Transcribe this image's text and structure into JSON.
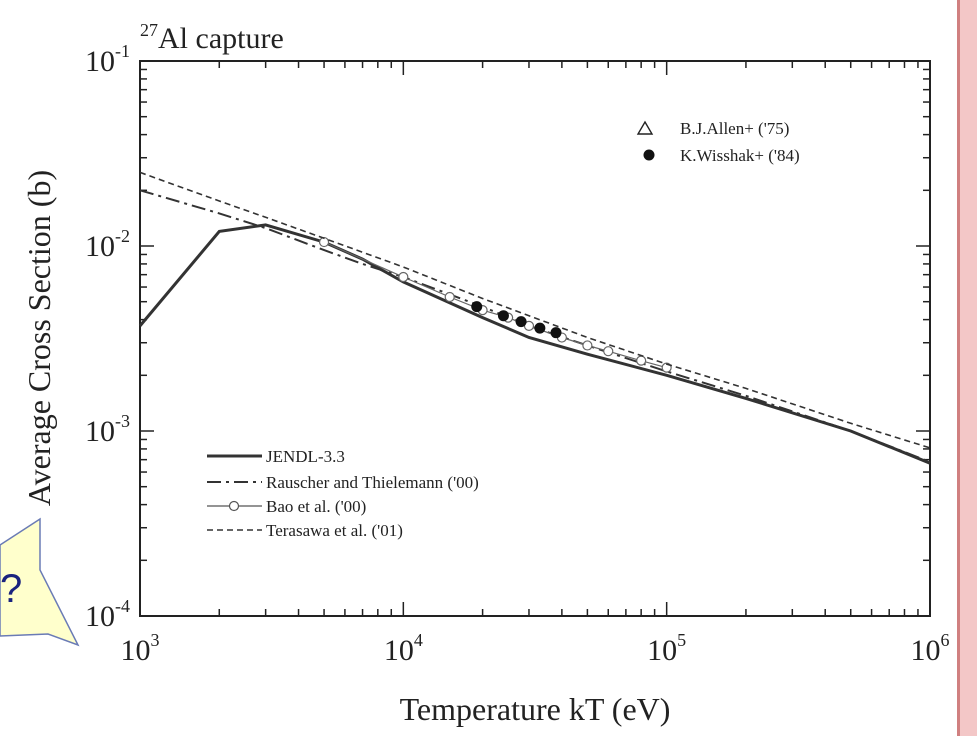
{
  "colors": {
    "background": "#ffffff",
    "side_stripe": "#f3c7c7",
    "callout_fill": "#ffffcc",
    "callout_border": "#6a7bb5",
    "callout_text": "#1a237e",
    "ink": "#222222"
  },
  "callout": {
    "text": "?",
    "shape": "arrow-callout"
  },
  "chart_data": {
    "type": "line",
    "title_base": "Al capture",
    "title_superscript": "27",
    "xlabel": "Temperature kT (eV)",
    "ylabel": "Average Cross Section (b)",
    "xscale": "log",
    "yscale": "log",
    "xlim": [
      1000,
      1000000
    ],
    "ylim": [
      0.0001,
      0.1
    ],
    "x_ticks": [
      {
        "base": "10",
        "exp": "3",
        "value": 1000
      },
      {
        "base": "10",
        "exp": "4",
        "value": 10000
      },
      {
        "base": "10",
        "exp": "5",
        "value": 100000
      },
      {
        "base": "10",
        "exp": "6",
        "value": 1000000
      }
    ],
    "y_ticks": [
      {
        "base": "10",
        "exp": "-1",
        "value": 0.1
      },
      {
        "base": "10",
        "exp": "-2",
        "value": 0.01
      },
      {
        "base": "10",
        "exp": "-3",
        "value": 0.001
      },
      {
        "base": "10",
        "exp": "-4",
        "value": 0.0001
      }
    ],
    "grid": false,
    "legend_upper_position": "top-right",
    "legend_lower_position": "bottom-left",
    "series": [
      {
        "name": "JENDL-3.3",
        "style": "solid",
        "x": [
          1000,
          2000,
          3000,
          5000,
          7000,
          10000,
          20000,
          30000,
          50000,
          100000,
          200000,
          500000,
          1000000
        ],
        "y": [
          0.0037,
          0.012,
          0.013,
          0.0105,
          0.0085,
          0.0064,
          0.0041,
          0.0032,
          0.0026,
          0.002,
          0.0015,
          0.001,
          0.00067
        ]
      },
      {
        "name": "Rauscher and Thielemann ('00)",
        "style": "dashdot",
        "x": [
          1000,
          2000,
          3000,
          5000,
          7000,
          10000,
          20000,
          30000,
          50000,
          100000,
          200000,
          500000,
          1000000
        ],
        "y": [
          0.02,
          0.015,
          0.0125,
          0.0095,
          0.008,
          0.0068,
          0.0047,
          0.0037,
          0.0029,
          0.0021,
          0.00155,
          0.001,
          0.00068
        ]
      },
      {
        "name": "Bao et al. ('00)",
        "style": "solid-open-circle",
        "x": [
          5000,
          10000,
          15000,
          20000,
          25000,
          30000,
          40000,
          50000,
          60000,
          80000,
          100000
        ],
        "y": [
          0.0105,
          0.0068,
          0.0053,
          0.0045,
          0.0041,
          0.0037,
          0.0032,
          0.0029,
          0.0027,
          0.0024,
          0.0022
        ]
      },
      {
        "name": "Terasawa et al. ('01)",
        "style": "dashed",
        "x": [
          1000,
          2000,
          3000,
          5000,
          10000,
          20000,
          30000,
          50000,
          100000,
          200000,
          500000,
          1000000
        ],
        "y": [
          0.025,
          0.0175,
          0.0143,
          0.011,
          0.0077,
          0.0052,
          0.0042,
          0.0032,
          0.0023,
          0.0017,
          0.0011,
          0.00081
        ]
      },
      {
        "name": "B.J.Allen+ ('75)",
        "style": "marker-open-triangle",
        "x": [],
        "y": []
      },
      {
        "name": "K.Wisshak+ ('84)",
        "style": "marker-filled-circle",
        "x": [
          19000,
          24000,
          28000,
          33000,
          38000
        ],
        "y": [
          0.0047,
          0.0042,
          0.0039,
          0.0036,
          0.0034
        ]
      }
    ]
  }
}
